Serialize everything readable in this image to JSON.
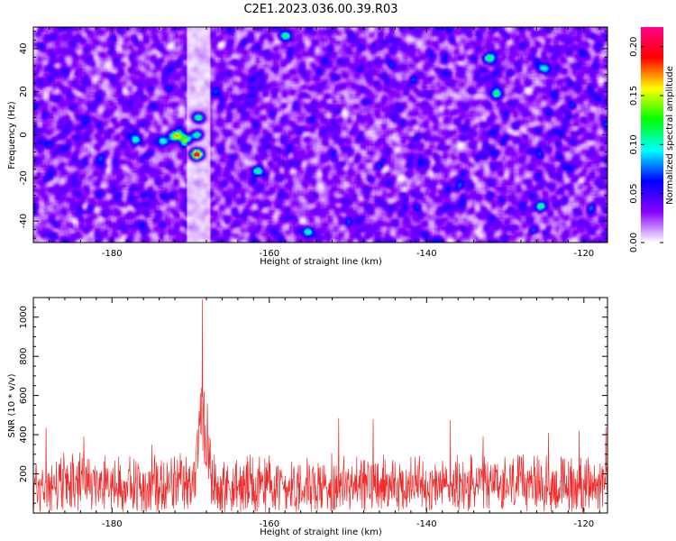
{
  "figure_title": "C2E1.2023.036.00.39.R03",
  "colors": {
    "snr_line": "#ee2c2c",
    "axis": "#000000",
    "background": "#ffffff"
  },
  "chart_data": [
    {
      "type": "heatmap",
      "title": "C2E1.2023.036.00.39.R03",
      "xlabel": "Height of straight line (km)",
      "ylabel": "Frequency (Hz)",
      "xlim": [
        -190,
        -117
      ],
      "ylim": [
        -50,
        50
      ],
      "x_ticks": [
        -180,
        -160,
        -140,
        -120
      ],
      "x_tick_labels": [
        "-180",
        "-160",
        "-140",
        "-120"
      ],
      "y_ticks": [
        -40,
        -20,
        0,
        20,
        40
      ],
      "y_tick_labels": [
        "-40",
        "-20",
        "0",
        "20",
        "40"
      ],
      "colorbar": {
        "label": "Normalized spectral amplitude",
        "range": [
          0,
          0.22
        ],
        "ticks": [
          0.0,
          0.05,
          0.1,
          0.15,
          0.2
        ],
        "tick_labels": [
          "0.00",
          "0.05",
          "0.10",
          "0.15",
          "0.20"
        ],
        "colormap": [
          "#ffffff",
          "#8800ff",
          "#0000ff",
          "#00ffff",
          "#00ff00",
          "#ffff00",
          "#ff0000",
          "#ff0088"
        ]
      },
      "background_level": 0.035,
      "quiet_band_km": [
        -170.5,
        -167.5
      ],
      "peak": {
        "x": -169.2,
        "y": -9,
        "value": 0.22
      },
      "hot_spots": [
        {
          "x": -169.0,
          "y": 8,
          "value": 0.12
        },
        {
          "x": -169.2,
          "y": 0,
          "value": 0.11
        },
        {
          "x": -170.5,
          "y": -2,
          "value": 0.1
        },
        {
          "x": -172.0,
          "y": -1,
          "value": 0.09
        },
        {
          "x": -171.5,
          "y": 0,
          "value": 0.1
        },
        {
          "x": -173.5,
          "y": -3,
          "value": 0.09
        },
        {
          "x": -161.5,
          "y": -17,
          "value": 0.1
        },
        {
          "x": -125.5,
          "y": -33,
          "value": 0.1
        },
        {
          "x": -132.0,
          "y": 35,
          "value": 0.1
        },
        {
          "x": -177.0,
          "y": -2,
          "value": 0.09
        },
        {
          "x": -158.0,
          "y": 46,
          "value": 0.09
        },
        {
          "x": -131.0,
          "y": 19,
          "value": 0.09
        },
        {
          "x": -125.0,
          "y": 31,
          "value": 0.09
        },
        {
          "x": -155.0,
          "y": -45,
          "value": 0.09
        }
      ]
    },
    {
      "type": "line",
      "xlabel": "Height of straight line (km)",
      "ylabel": "SNR (10 * v/v)",
      "xlim": [
        -190,
        -117
      ],
      "ylim": [
        0,
        1100
      ],
      "x_ticks": [
        -180,
        -160,
        -140,
        -120
      ],
      "x_tick_labels": [
        "-180",
        "-160",
        "-140",
        "-120"
      ],
      "y_ticks": [
        200,
        400,
        600,
        800,
        1000
      ],
      "y_tick_labels": [
        "200",
        "400",
        "600",
        "800",
        "1000"
      ],
      "baseline_mean": 140,
      "noise_upper": 320,
      "outlier_spikes": [
        {
          "x": -188.4,
          "y": 435
        },
        {
          "x": -183.6,
          "y": 390
        },
        {
          "x": -174.9,
          "y": 350
        },
        {
          "x": -151.2,
          "y": 485
        },
        {
          "x": -146.8,
          "y": 480
        },
        {
          "x": -137.0,
          "y": 475
        },
        {
          "x": -132.8,
          "y": 390
        },
        {
          "x": -124.5,
          "y": 410
        },
        {
          "x": -120.6,
          "y": 420
        },
        {
          "x": -117.2,
          "y": 440
        }
      ],
      "peak_region": {
        "x_range": [
          -170.0,
          -166.5
        ],
        "points": [
          {
            "x": -169.2,
            "y": 390
          },
          {
            "x": -168.9,
            "y": 520
          },
          {
            "x": -168.6,
            "y": 640
          },
          {
            "x": -168.5,
            "y": 1090
          },
          {
            "x": -168.3,
            "y": 620
          },
          {
            "x": -167.9,
            "y": 560
          },
          {
            "x": -167.5,
            "y": 380
          }
        ]
      }
    }
  ]
}
